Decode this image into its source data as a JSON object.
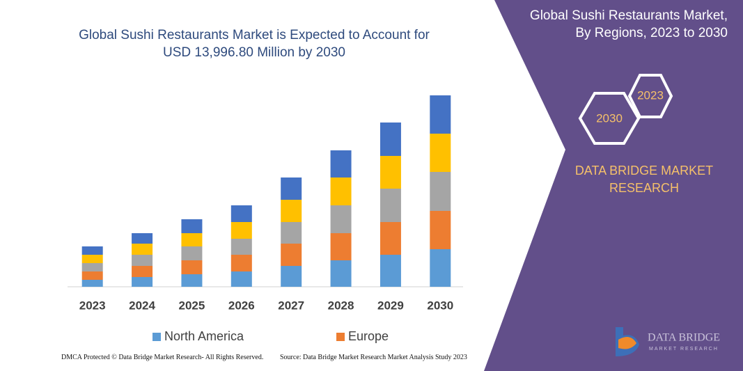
{
  "chart_data": {
    "type": "stacked-bar",
    "title": "Global Sushi Restaurants Market is Expected to Account for USD 13,996.80 Million by 2030",
    "categories": [
      "2023",
      "2024",
      "2025",
      "2026",
      "2027",
      "2028",
      "2029",
      "2030"
    ],
    "series": [
      {
        "name": "North America",
        "color": "#5b9bd5",
        "values": [
          10,
          14,
          18,
          22,
          30,
          38,
          46,
          54
        ]
      },
      {
        "name": "Europe",
        "color": "#ed7d31",
        "values": [
          12,
          16,
          20,
          24,
          32,
          39,
          47,
          55
        ]
      },
      {
        "color": "#a5a5a5",
        "values": [
          12,
          16,
          20,
          23,
          31,
          40,
          48,
          56
        ]
      },
      {
        "color": "#ffc000",
        "values": [
          12,
          16,
          19,
          24,
          32,
          40,
          47,
          55
        ]
      },
      {
        "color": "#4472c4",
        "values": [
          12,
          15,
          20,
          24,
          32,
          39,
          48,
          55
        ]
      }
    ]
  },
  "side_panel": {
    "title": "Global Sushi Restaurants Market, By Regions, 2023 to 2030",
    "hexagons": [
      "2023",
      "2030"
    ],
    "brand": "DATA BRIDGE MARKET RESEARCH"
  },
  "logo": {
    "name": "DATA BRIDGE",
    "tagline": "MARKET RESEARCH"
  },
  "footer": {
    "left": "DMCA Protected © Data Bridge Market Research- All Rights Reserved.",
    "right": "Source: Data Bridge Market Research Market Analysis Study 2023"
  }
}
